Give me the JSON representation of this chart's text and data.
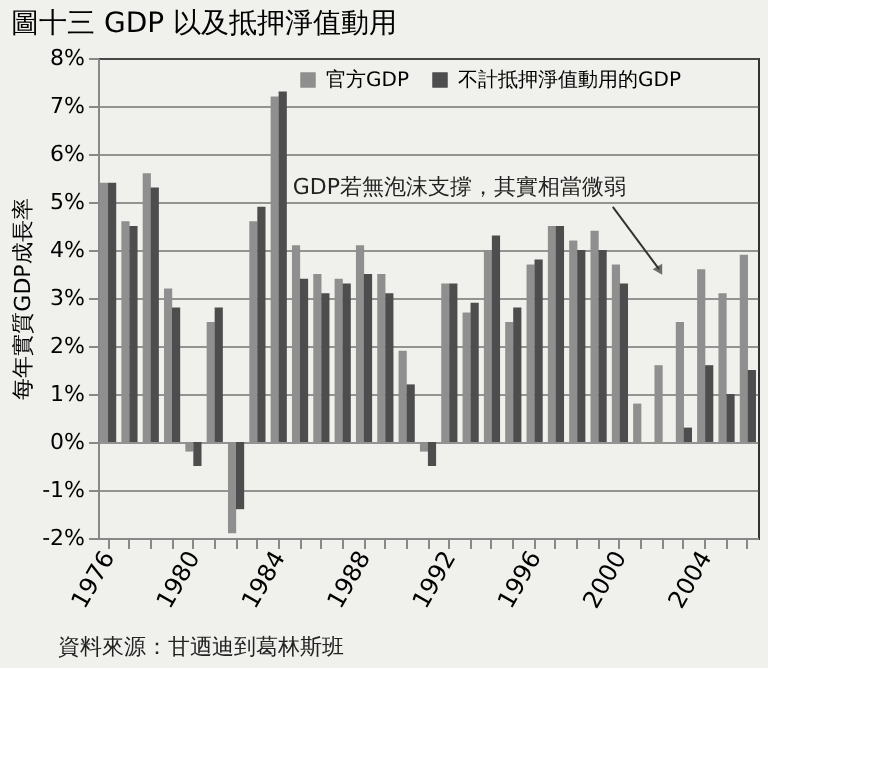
{
  "chart_data": {
    "type": "bar",
    "title": "圖十三 GDP 以及抵押淨值動用",
    "ylabel": "每年實質GDP成長率",
    "categories": [
      "1976",
      null,
      null,
      null,
      "1980",
      null,
      null,
      null,
      "1984",
      null,
      null,
      null,
      "1988",
      null,
      null,
      null,
      "1992",
      null,
      null,
      null,
      "1996",
      null,
      null,
      null,
      "2000",
      null,
      null,
      null,
      "2004",
      null,
      null
    ],
    "series": [
      {
        "name": "官方GDP",
        "color": "#8f8f8f",
        "values": [
          5.4,
          4.6,
          5.6,
          3.2,
          -0.2,
          2.5,
          -1.9,
          4.6,
          7.2,
          4.1,
          3.5,
          3.4,
          4.1,
          3.5,
          1.9,
          -0.2,
          3.3,
          2.7,
          4.0,
          2.5,
          3.7,
          4.5,
          4.2,
          4.4,
          3.7,
          0.8,
          1.6,
          2.5,
          3.6,
          3.1,
          3.9
        ]
      },
      {
        "name": "不計抵押淨值動用的GDP",
        "color": "#4d4d4d",
        "values": [
          5.4,
          4.5,
          5.3,
          2.8,
          -0.5,
          2.8,
          -1.4,
          4.9,
          7.3,
          3.4,
          3.1,
          3.3,
          3.5,
          3.1,
          1.2,
          -0.5,
          3.3,
          2.9,
          4.3,
          2.8,
          3.8,
          4.5,
          4.0,
          4.0,
          3.3,
          null,
          null,
          0.3,
          1.6,
          1.0,
          1.5
        ]
      }
    ],
    "ylim": [
      -2,
      8
    ],
    "yticks": [
      {
        "value": -2,
        "label": "-2%"
      },
      {
        "value": -1,
        "label": "-1%"
      },
      {
        "value": 0,
        "label": "0%"
      },
      {
        "value": 1,
        "label": "1%"
      },
      {
        "value": 2,
        "label": "2%"
      },
      {
        "value": 3,
        "label": "3%"
      },
      {
        "value": 4,
        "label": "4%"
      },
      {
        "value": 5,
        "label": "5%"
      },
      {
        "value": 6,
        "label": "6%"
      },
      {
        "value": 7,
        "label": "7%"
      },
      {
        "value": 8,
        "label": "8%"
      }
    ],
    "grid": "y",
    "legend": "top right",
    "annotations": [
      "GDP若無泡沫支撐，其實相當微弱",
      "資料來源：甘迺迪到葛林斯班"
    ]
  }
}
